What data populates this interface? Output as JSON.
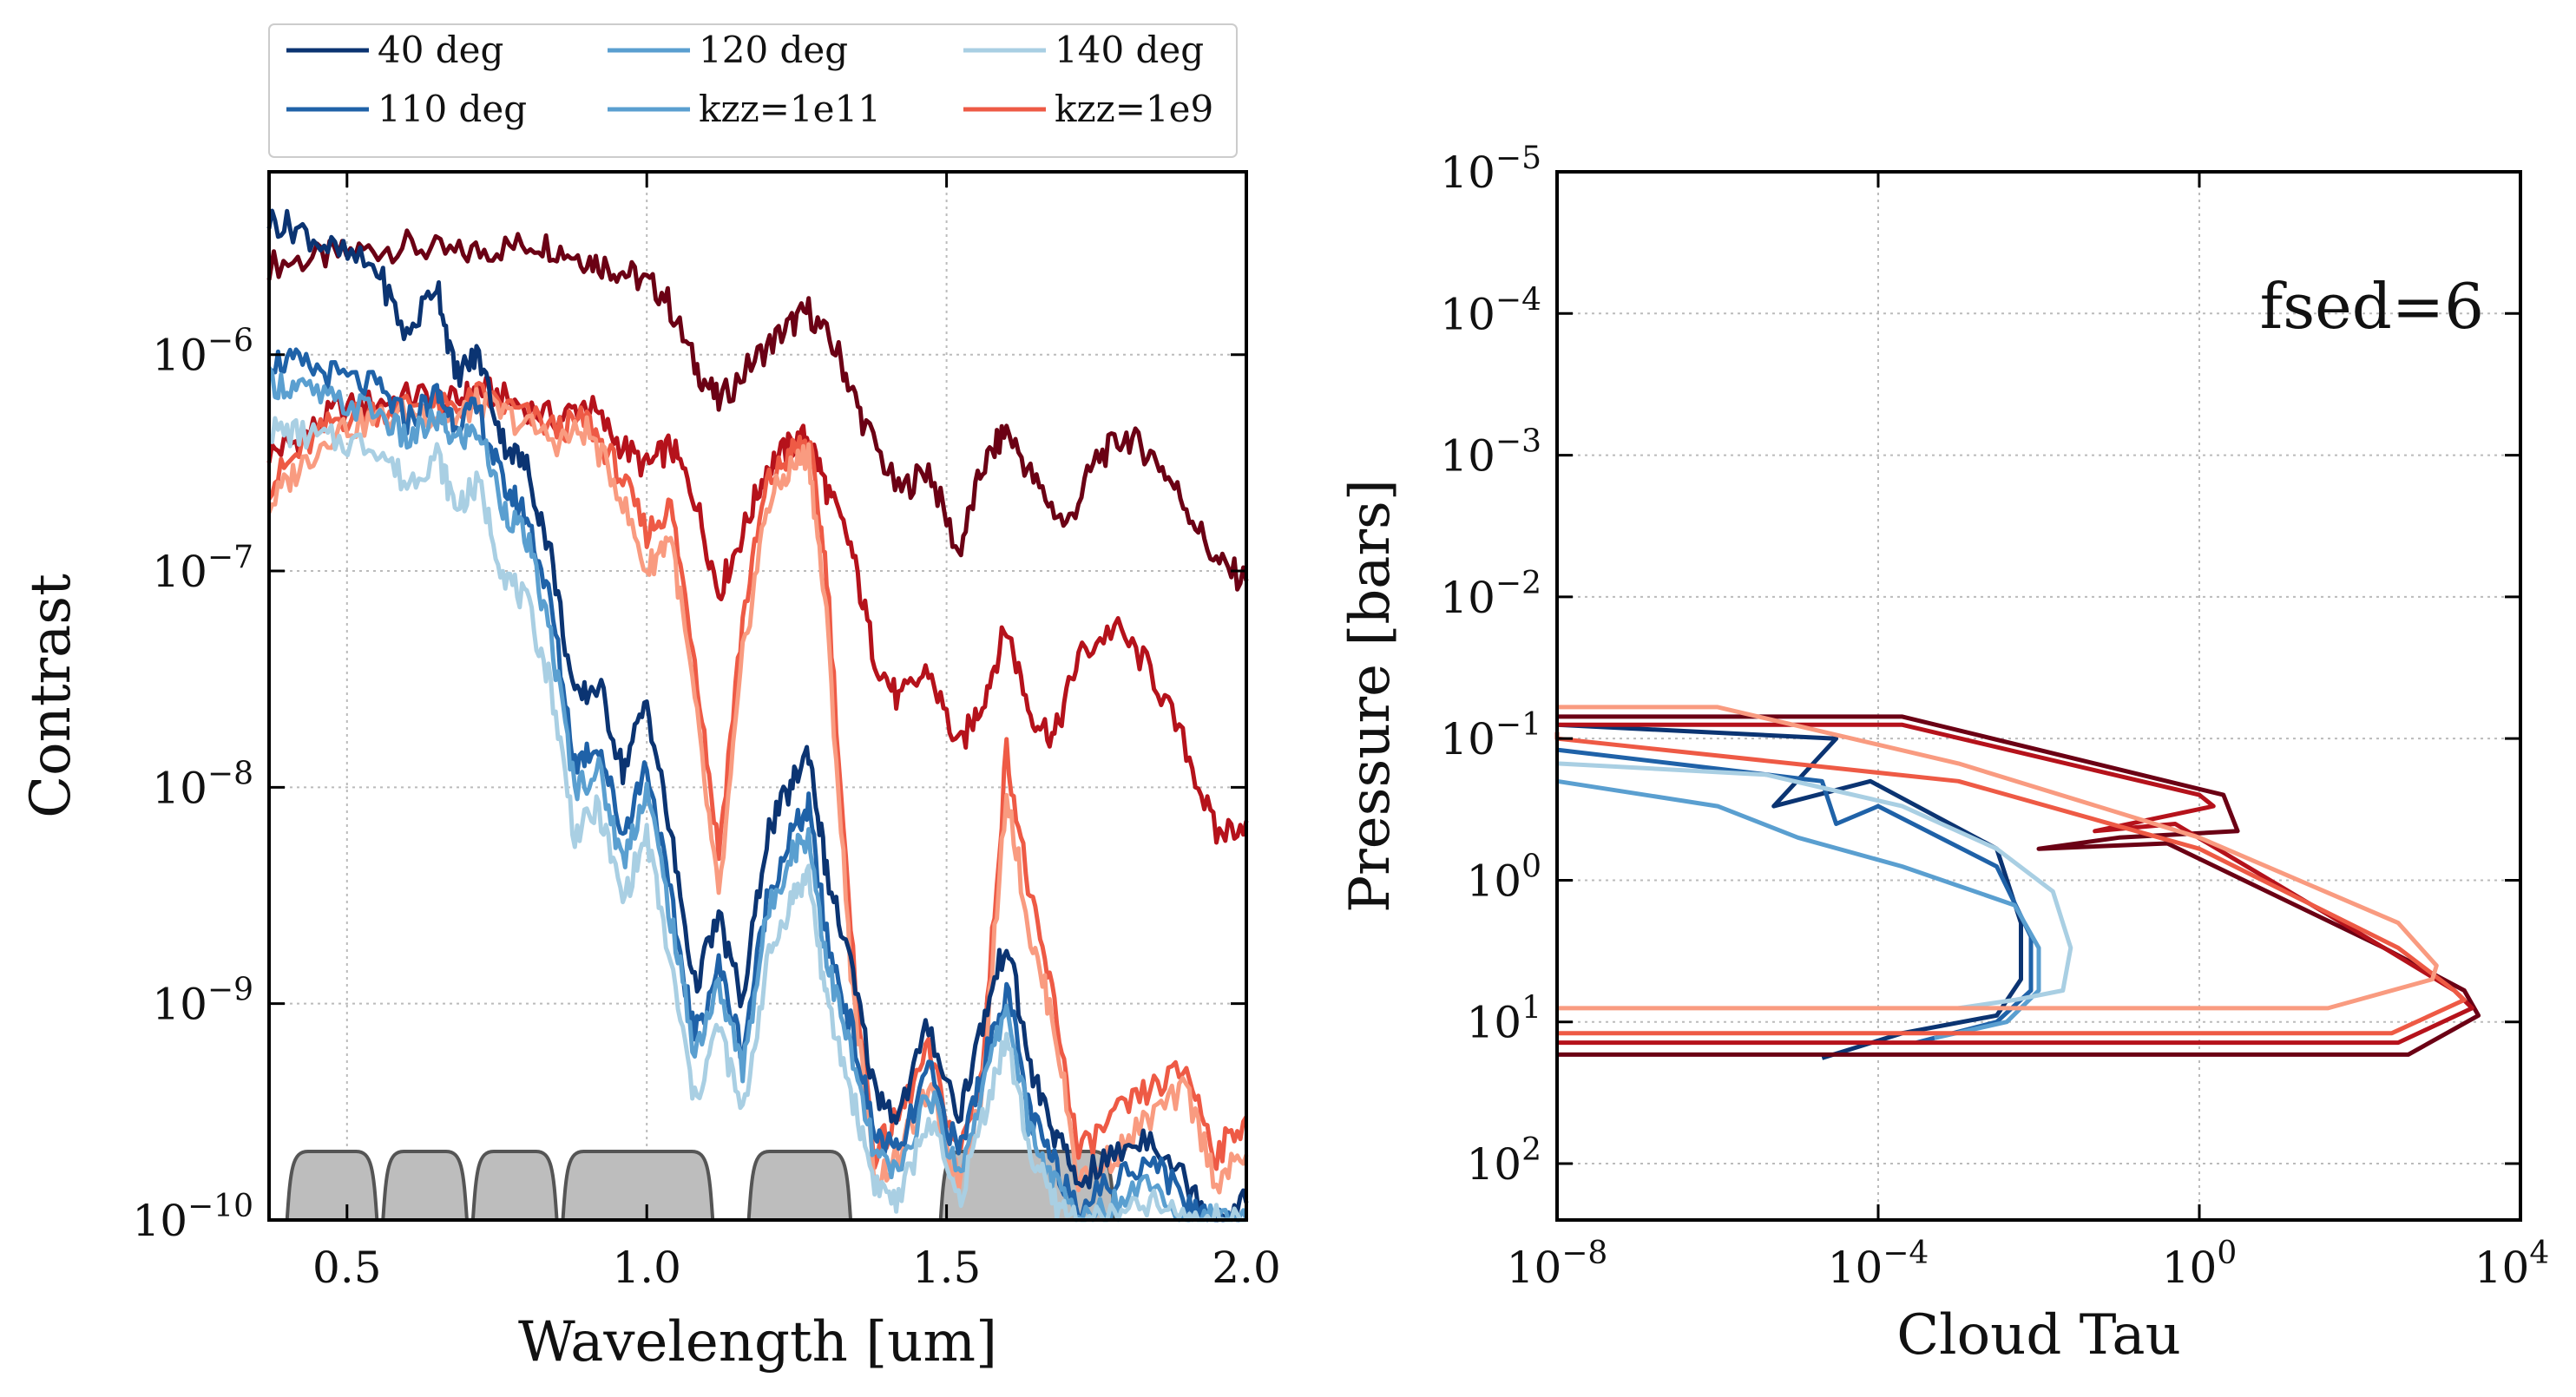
{
  "chart_data": [
    {
      "type": "line",
      "xlabel": "Wavelength [um]",
      "ylabel": "Contrast",
      "xlim": [
        0.37,
        2.0
      ],
      "ylim": [
        1e-10,
        7e-06
      ],
      "yscale": "log",
      "grid": true,
      "legend_placement": "above-plot",
      "x_ticks": [
        "0.5",
        "1.0",
        "1.5",
        "2.0"
      ],
      "x_tick_values": [
        0.5,
        1.0,
        1.5,
        2.0
      ],
      "y_ticks": [
        {
          "base": "10",
          "exp": "−10",
          "value": 1e-10
        },
        {
          "base": "10",
          "exp": "−9",
          "value": 1e-09
        },
        {
          "base": "10",
          "exp": "−8",
          "value": 1e-08
        },
        {
          "base": "10",
          "exp": "−7",
          "value": 1e-07
        },
        {
          "base": "10",
          "exp": "−6",
          "value": 1e-06
        }
      ],
      "legend": [
        {
          "label": "40 deg",
          "color": "#0b3472"
        },
        {
          "label": "120 deg",
          "color": "#5a9fd0"
        },
        {
          "label": "140 deg",
          "color": "#a9cfe3"
        },
        {
          "label": "110 deg",
          "color": "#1f62a8"
        },
        {
          "label": "kzz=1e11",
          "color": "#5a9fd0"
        },
        {
          "label": "kzz=1e9",
          "color": "#ee5a45"
        }
      ],
      "series": [
        {
          "color": "#6b0014",
          "x": [
            0.37,
            0.45,
            0.52,
            0.6,
            0.68,
            0.75,
            0.82,
            0.88,
            0.93,
            0.98,
            1.03,
            1.08,
            1.12,
            1.18,
            1.23,
            1.27,
            1.32,
            1.36,
            1.42,
            1.47,
            1.52,
            1.56,
            1.6,
            1.65,
            1.7,
            1.75,
            1.8,
            1.85,
            1.9,
            1.95,
            2.0
          ],
          "y": [
            2.6e-06,
            2.8e-06,
            3e-06,
            3.2e-06,
            2.9e-06,
            3.1e-06,
            3.3e-06,
            2.9e-06,
            2.6e-06,
            2.3e-06,
            1.9e-06,
            9e-07,
            6e-07,
            9.5e-07,
            1.3e-06,
            1.6e-06,
            1e-06,
            5e-07,
            2.3e-07,
            3e-07,
            1.2e-07,
            3e-07,
            4.5e-07,
            2.5e-07,
            1.6e-07,
            3.3e-07,
            4.2e-07,
            3.3e-07,
            2e-07,
            1.1e-07,
            9e-08
          ]
        },
        {
          "color": "#b5121b",
          "x": [
            0.37,
            0.42,
            0.48,
            0.55,
            0.62,
            0.68,
            0.72,
            0.78,
            0.85,
            0.9,
            0.95,
            1.0,
            1.04,
            1.08,
            1.12,
            1.16,
            1.2,
            1.24,
            1.27,
            1.3,
            1.34,
            1.38,
            1.42,
            1.47,
            1.52,
            1.56,
            1.6,
            1.64,
            1.68,
            1.72,
            1.78,
            1.84,
            1.9,
            1.95,
            2.0
          ],
          "y": [
            3.5e-07,
            4e-07,
            5.5e-07,
            6e-07,
            6.5e-07,
            6e-07,
            7e-07,
            6e-07,
            5e-07,
            6e-07,
            4e-07,
            3e-07,
            3.8e-07,
            2.2e-07,
            8e-08,
            1.5e-07,
            3e-07,
            3.8e-07,
            4.2e-07,
            2.4e-07,
            1.3e-07,
            4e-08,
            2.5e-08,
            3.5e-08,
            1.5e-08,
            2.5e-08,
            5.5e-08,
            2.2e-08,
            1.7e-08,
            4e-08,
            5.5e-08,
            3.5e-08,
            1.5e-08,
            6e-09,
            7e-09
          ]
        },
        {
          "color": "#ee5a45",
          "x": [
            0.37,
            0.42,
            0.48,
            0.55,
            0.62,
            0.68,
            0.72,
            0.78,
            0.85,
            0.9,
            0.95,
            1.0,
            1.04,
            1.08,
            1.12,
            1.16,
            1.2,
            1.24,
            1.27,
            1.3,
            1.34,
            1.38,
            1.42,
            1.47,
            1.52,
            1.56,
            1.6,
            1.64,
            1.68,
            1.72,
            1.78,
            1.84,
            1.9,
            1.95,
            2.0
          ],
          "y": [
            2.5e-07,
            3.5e-07,
            5e-07,
            5.5e-07,
            6e-07,
            5.5e-07,
            6.5e-07,
            5.5e-07,
            4.5e-07,
            5e-07,
            3e-07,
            1.5e-07,
            2e-07,
            4e-08,
            5e-09,
            6e-08,
            2.5e-07,
            3.5e-07,
            4e-07,
            1e-07,
            2e-09,
            2e-10,
            3e-10,
            6e-10,
            2e-10,
            5e-10,
            1.5e-08,
            3e-09,
            1e-09,
            2e-10,
            3e-10,
            4e-10,
            5e-10,
            2e-10,
            3e-10
          ]
        },
        {
          "color": "#f99b80",
          "x": [
            0.37,
            0.42,
            0.48,
            0.55,
            0.62,
            0.68,
            0.72,
            0.78,
            0.85,
            0.9,
            0.95,
            1.0,
            1.04,
            1.08,
            1.12,
            1.16,
            1.2,
            1.24,
            1.27,
            1.3,
            1.34,
            1.38,
            1.42,
            1.47,
            1.52,
            1.56,
            1.6,
            1.64,
            1.68,
            1.72,
            1.78,
            1.84,
            1.9,
            1.95,
            2.0
          ],
          "y": [
            2e-07,
            3e-07,
            4.5e-07,
            5e-07,
            5.5e-07,
            5e-07,
            6e-07,
            5e-07,
            4e-07,
            4.5e-07,
            2.5e-07,
            1e-07,
            1.5e-07,
            2.5e-08,
            3e-09,
            4e-08,
            2e-07,
            3e-07,
            3.5e-07,
            6e-08,
            1.5e-09,
            1.5e-10,
            2e-10,
            4e-10,
            1.5e-10,
            4e-10,
            1e-08,
            2e-09,
            8e-10,
            1.5e-10,
            2e-10,
            3e-10,
            4e-10,
            1.5e-10,
            2e-10
          ]
        },
        {
          "color": "#0b3472",
          "x": [
            0.37,
            0.42,
            0.48,
            0.55,
            0.6,
            0.65,
            0.68,
            0.72,
            0.76,
            0.8,
            0.84,
            0.88,
            0.92,
            0.96,
            1.0,
            1.04,
            1.08,
            1.12,
            1.16,
            1.2,
            1.24,
            1.27,
            1.3,
            1.34,
            1.38,
            1.42,
            1.47,
            1.52,
            1.56,
            1.6,
            1.64,
            1.68,
            1.72,
            1.78,
            1.84,
            1.9,
            1.95,
            2.0
          ],
          "y": [
            4.2e-06,
            3.8e-06,
            3e-06,
            2.5e-06,
            1.2e-06,
            2.2e-06,
            8e-07,
            1e-06,
            4e-07,
            3e-07,
            1.2e-07,
            2.5e-08,
            3e-08,
            1.2e-08,
            2.5e-08,
            6e-09,
            1.2e-09,
            2.5e-09,
            1e-09,
            6e-09,
            1e-08,
            1.5e-08,
            4e-09,
            1.5e-09,
            4e-10,
            3e-10,
            8e-10,
            3e-10,
            8e-10,
            2e-09,
            5e-10,
            2.5e-10,
            1.5e-10,
            2e-10,
            2.5e-10,
            1.5e-10,
            1e-10,
            1.2e-10
          ]
        },
        {
          "color": "#1f62a8",
          "x": [
            0.37,
            0.42,
            0.48,
            0.55,
            0.6,
            0.65,
            0.68,
            0.72,
            0.76,
            0.8,
            0.84,
            0.88,
            0.92,
            0.96,
            1.0,
            1.04,
            1.08,
            1.12,
            1.16,
            1.2,
            1.24,
            1.27,
            1.3,
            1.34,
            1.38,
            1.42,
            1.47,
            1.52,
            1.56,
            1.6,
            1.64,
            1.68,
            1.72,
            1.78,
            1.84,
            1.9,
            1.95,
            2.0
          ],
          "y": [
            9.5e-07,
            9e-07,
            8e-07,
            7e-07,
            5e-07,
            6.5e-07,
            5e-07,
            5.5e-07,
            2.5e-07,
            1.8e-07,
            7e-08,
            1.3e-08,
            1.6e-08,
            6e-09,
            1.3e-08,
            3e-09,
            7e-10,
            1.5e-09,
            6e-10,
            3e-09,
            6e-09,
            8e-09,
            2e-09,
            8e-10,
            2.5e-10,
            2e-10,
            5e-10,
            2e-10,
            5e-10,
            1.2e-09,
            3e-10,
            1.8e-10,
            1.2e-10,
            1.5e-10,
            2e-10,
            1.2e-10,
            1e-10,
            1e-10
          ]
        },
        {
          "color": "#5a9fd0",
          "x": [
            0.37,
            0.42,
            0.48,
            0.55,
            0.6,
            0.65,
            0.68,
            0.72,
            0.76,
            0.8,
            0.84,
            0.88,
            0.92,
            0.96,
            1.0,
            1.04,
            1.08,
            1.12,
            1.16,
            1.2,
            1.24,
            1.27,
            1.3,
            1.34,
            1.38,
            1.42,
            1.47,
            1.52,
            1.56,
            1.6,
            1.64,
            1.68,
            1.72,
            1.78,
            1.84,
            1.9,
            1.95,
            2.0
          ],
          "y": [
            7.5e-07,
            7e-07,
            6e-07,
            5.5e-07,
            4e-07,
            5e-07,
            4e-07,
            4.5e-07,
            2e-07,
            1.4e-07,
            5e-08,
            1e-08,
            1.2e-08,
            4.5e-09,
            1e-08,
            2.5e-09,
            6e-10,
            1.2e-09,
            5e-10,
            2.5e-09,
            5e-09,
            6e-09,
            1.6e-09,
            6e-10,
            2e-10,
            1.6e-10,
            4e-10,
            1.6e-10,
            4e-10,
            1e-09,
            2.5e-10,
            1.5e-10,
            1e-10,
            1.2e-10,
            1.6e-10,
            1e-10,
            1e-10,
            1e-10
          ]
        },
        {
          "color": "#a9cfe3",
          "x": [
            0.37,
            0.42,
            0.48,
            0.55,
            0.6,
            0.65,
            0.68,
            0.72,
            0.76,
            0.8,
            0.84,
            0.88,
            0.92,
            0.96,
            1.0,
            1.04,
            1.08,
            1.12,
            1.16,
            1.2,
            1.24,
            1.27,
            1.3,
            1.34,
            1.38,
            1.42,
            1.47,
            1.52,
            1.56,
            1.6,
            1.64,
            1.68,
            1.72,
            1.78,
            1.84,
            1.9,
            1.95,
            2.0
          ],
          "y": [
            4.5e-07,
            4.3e-07,
            4e-07,
            3.8e-07,
            2.5e-07,
            3.5e-07,
            2e-07,
            2.5e-07,
            1e-07,
            7e-08,
            3e-08,
            6e-09,
            8e-09,
            3e-09,
            6e-09,
            1.5e-09,
            3.5e-10,
            8e-10,
            3e-10,
            1.5e-09,
            3e-09,
            4e-09,
            1e-09,
            4e-10,
            1.5e-10,
            1.2e-10,
            3e-10,
            1.2e-10,
            3e-10,
            7e-10,
            2e-10,
            1.2e-10,
            1e-10,
            1e-10,
            1.2e-10,
            1e-10,
            1e-10,
            1e-10
          ]
        }
      ],
      "filters": [
        [
          0.4,
          0.55
        ],
        [
          0.56,
          0.7
        ],
        [
          0.71,
          0.85
        ],
        [
          0.86,
          1.11
        ],
        [
          1.17,
          1.34
        ],
        [
          1.49,
          1.78
        ]
      ]
    },
    {
      "type": "line",
      "xlabel": "Cloud Tau",
      "ylabel": "Pressure [bars]",
      "xscale": "log",
      "yscale": "log",
      "y_inverted": true,
      "xlim": [
        1e-08,
        10000.0
      ],
      "ylim": [
        1e-05,
        250
      ],
      "grid": true,
      "annotation": "fsed=6",
      "x_ticks": [
        {
          "base": "10",
          "exp": "−8",
          "value": 1e-08
        },
        {
          "base": "10",
          "exp": "−4",
          "value": 0.0001
        },
        {
          "base": "10",
          "exp": "0",
          "value": 1
        },
        {
          "base": "10",
          "exp": "4",
          "value": 10000.0
        }
      ],
      "y_ticks": [
        {
          "base": "10",
          "exp": "−5",
          "value": 1e-05
        },
        {
          "base": "10",
          "exp": "−4",
          "value": 0.0001
        },
        {
          "base": "10",
          "exp": "−3",
          "value": 0.001
        },
        {
          "base": "10",
          "exp": "−2",
          "value": 0.01
        },
        {
          "base": "10",
          "exp": "−1",
          "value": 0.1
        },
        {
          "base": "10",
          "exp": "0",
          "value": 1
        },
        {
          "base": "10",
          "exp": "1",
          "value": 10
        },
        {
          "base": "10",
          "exp": "2",
          "value": 100
        }
      ],
      "series": [
        {
          "color": "#0b3472",
          "x": [
            1e-08,
            3e-05,
            5e-06,
            8e-05,
            0.003,
            0.006,
            0.006,
            0.003,
            0.0002,
            2e-05
          ],
          "y": [
            0.08,
            0.1,
            0.3,
            0.2,
            0.6,
            2,
            5,
            9,
            12,
            18
          ]
        },
        {
          "color": "#1f62a8",
          "x": [
            1e-08,
            2e-05,
            3e-05,
            0.0001,
            0.003,
            0.008,
            0.008,
            0.003,
            0.0003
          ],
          "y": [
            0.12,
            0.2,
            0.4,
            0.3,
            0.8,
            2.5,
            6,
            10,
            14
          ]
        },
        {
          "color": "#5a9fd0",
          "x": [
            1e-08,
            1e-06,
            1e-05,
            0.0002,
            0.005,
            0.01,
            0.01,
            0.004,
            0.0005
          ],
          "y": [
            0.2,
            0.3,
            0.5,
            0.8,
            1.5,
            3,
            6,
            10,
            13
          ]
        },
        {
          "color": "#a9cfe3",
          "x": [
            1e-08,
            4e-06,
            0.0002,
            0.003,
            0.015,
            0.025,
            0.02,
            0.005,
            0.001
          ],
          "y": [
            0.15,
            0.18,
            0.3,
            0.6,
            1.2,
            3,
            6,
            7,
            8
          ]
        },
        {
          "color": "#6b0014",
          "x": [
            1e-08,
            0.0002,
            2,
            3,
            0.1,
            0.01,
            0.4,
            200,
            2000,
            3000,
            400,
            1e-08
          ],
          "y": [
            0.07,
            0.07,
            0.25,
            0.45,
            0.5,
            0.6,
            0.55,
            3,
            6,
            9,
            17,
            17
          ]
        },
        {
          "color": "#b5121b",
          "x": [
            1e-08,
            0.0002,
            1,
            1.5,
            0.05,
            0.5,
            200,
            1500,
            2500,
            300,
            1e-08
          ],
          "y": [
            0.08,
            0.08,
            0.25,
            0.3,
            0.45,
            0.4,
            3,
            6,
            8,
            14,
            14
          ]
        },
        {
          "color": "#ee5a45",
          "x": [
            1e-08,
            1e-08,
            0.001,
            1,
            300,
            1500,
            2000,
            250,
            1e-08
          ],
          "y": [
            0.09,
            0.1,
            0.2,
            0.6,
            3,
            6,
            7,
            12,
            12
          ]
        },
        {
          "color": "#f99b80",
          "x": [
            1e-08,
            1e-06,
            0.001,
            1,
            300,
            900,
            800,
            40,
            1e-08
          ],
          "y": [
            0.06,
            0.06,
            0.15,
            0.5,
            2,
            4,
            5,
            8,
            8
          ]
        }
      ]
    }
  ]
}
